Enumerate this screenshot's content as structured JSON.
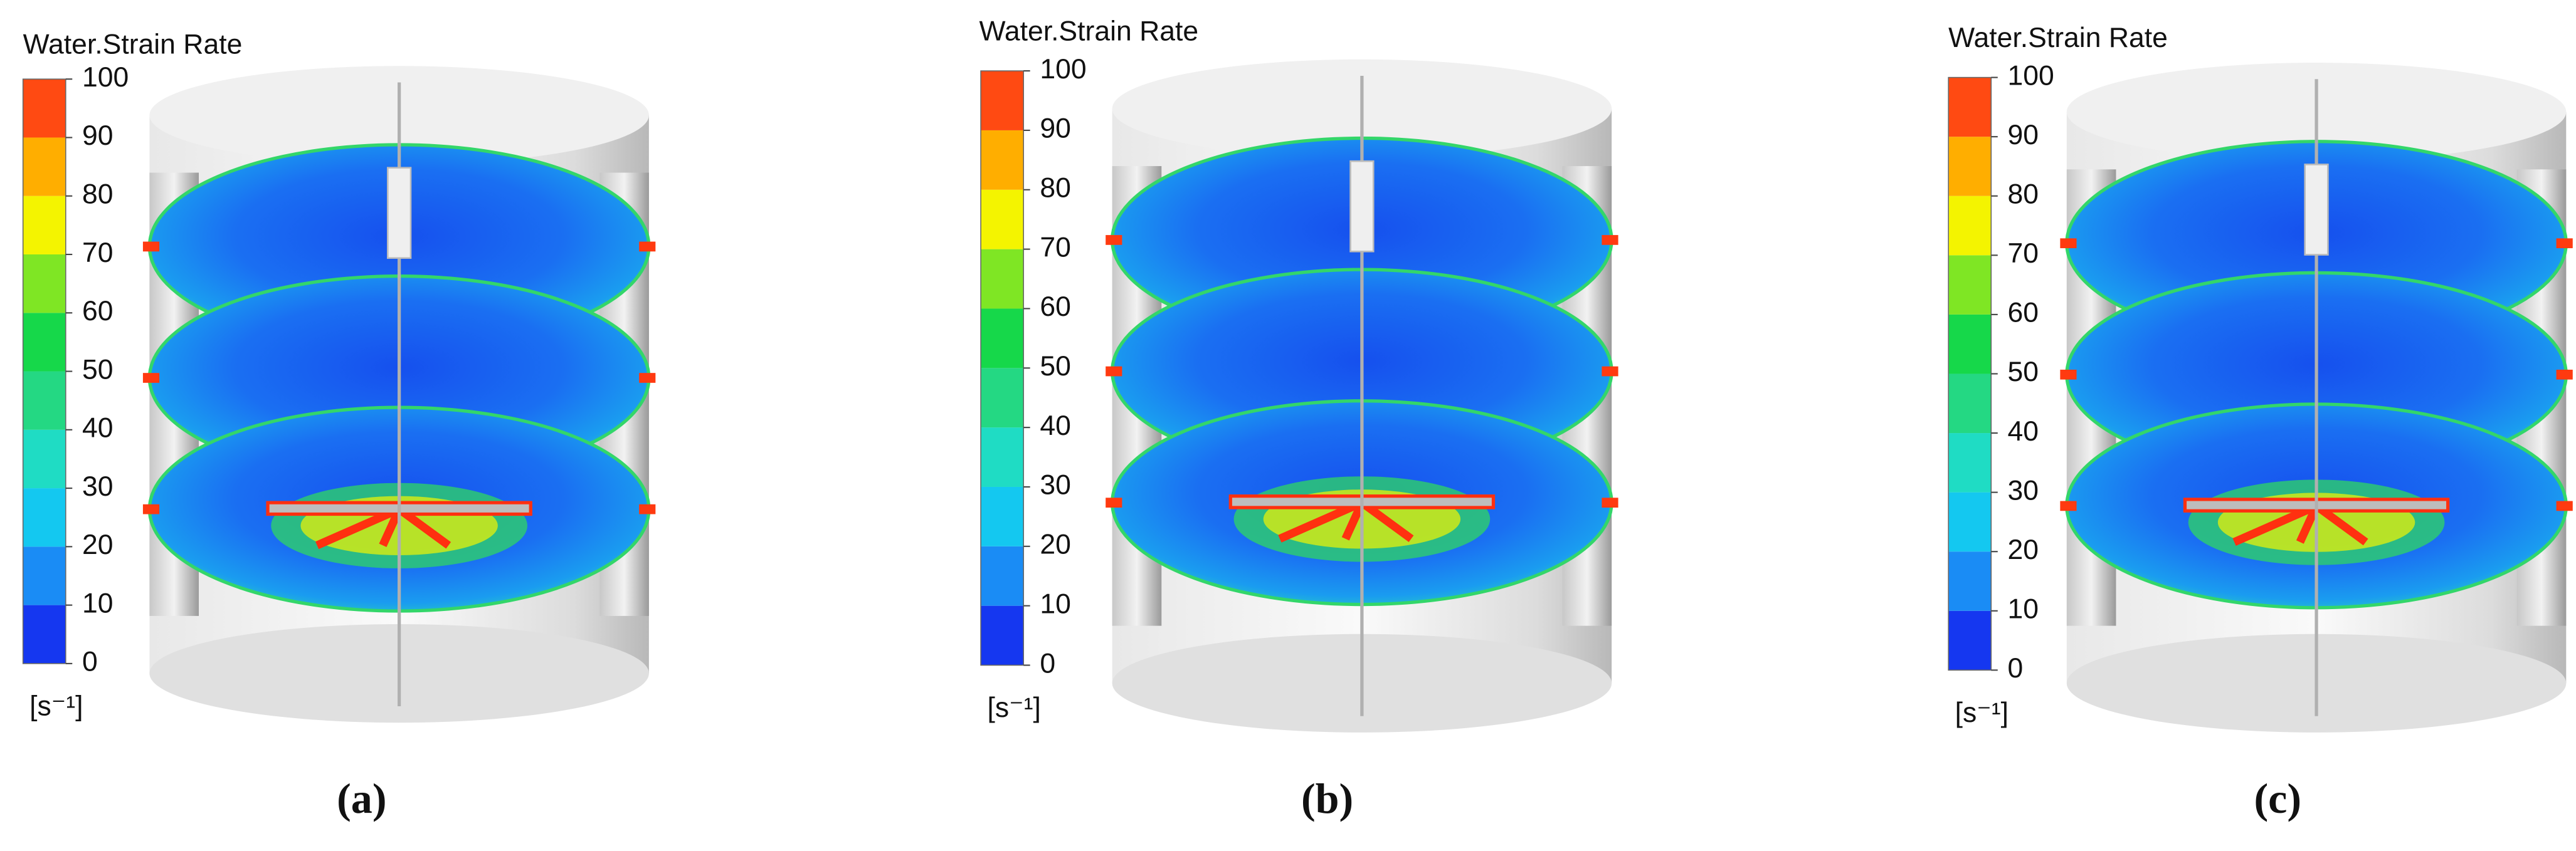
{
  "panels": [
    {
      "colorbar": {
        "title": "Water.Strain Rate",
        "ylim": [
          0,
          100
        ],
        "ticks": [
          0,
          10,
          20,
          30,
          40,
          50,
          60,
          70,
          80,
          90,
          100
        ],
        "unit": "[s⁻¹]",
        "colors": [
          "#1537f0",
          "#1a8cf5",
          "#14c8f0",
          "#1fdcc4",
          "#24d883",
          "#16d84a",
          "#7fe624",
          "#f4f400",
          "#ffae00",
          "#ff4a12"
        ]
      },
      "caption": "(a)"
    },
    {
      "colorbar": {
        "title": "Water.Strain Rate",
        "ylim": [
          0,
          100
        ],
        "ticks": [
          0,
          10,
          20,
          30,
          40,
          50,
          60,
          70,
          80,
          90,
          100
        ],
        "unit": "[s⁻¹]",
        "colors": [
          "#1537f0",
          "#1a8cf5",
          "#14c8f0",
          "#1fdcc4",
          "#24d883",
          "#16d84a",
          "#7fe624",
          "#f4f400",
          "#ffae00",
          "#ff4a12"
        ]
      },
      "caption": "(b)"
    },
    {
      "colorbar": {
        "title": "Water.Strain Rate",
        "ylim": [
          0,
          100
        ],
        "ticks": [
          0,
          10,
          20,
          30,
          40,
          50,
          60,
          70,
          80,
          90,
          100
        ],
        "unit": "[s⁻¹]",
        "colors": [
          "#1537f0",
          "#1a8cf5",
          "#14c8f0",
          "#1fdcc4",
          "#24d883",
          "#16d84a",
          "#7fe624",
          "#f4f400",
          "#ffae00",
          "#ff4a12"
        ]
      },
      "caption": "(c)"
    }
  ]
}
